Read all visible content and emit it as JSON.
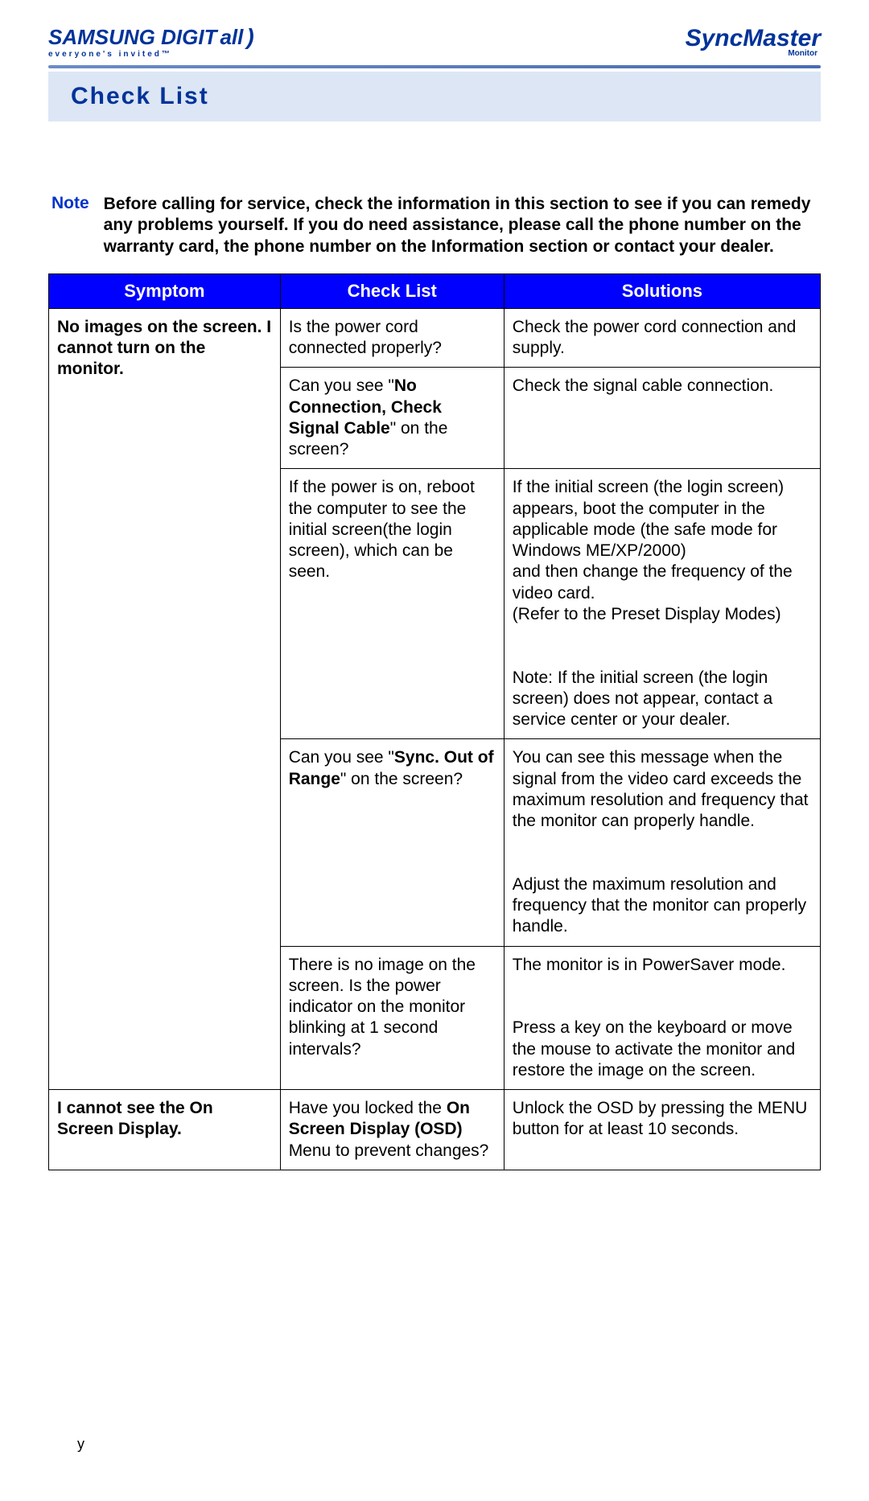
{
  "header": {
    "left_logo_main": "SAMSUNG DIGIT",
    "left_logo_italic": "all",
    "left_logo_sub": "everyone's invited™",
    "right_logo": "SyncMaster",
    "right_logo_sub": "Monitor"
  },
  "title": "Check List",
  "note": {
    "label": "Note",
    "text": "Before calling for service, check the information in this section to see if you can remedy any problems yourself. If you do need assistance, please call the phone number on the warranty card, the phone number on the Information section or contact your dealer."
  },
  "table": {
    "columns": [
      "Symptom",
      "Check List",
      "Solutions"
    ],
    "header_bg": "#0000ff",
    "header_color": "#ffffff",
    "border_color": "#000000",
    "rows": [
      {
        "symptom": "No images on the screen. I cannot turn on the monitor.",
        "symptom_rowspan": 5,
        "check": {
          "prefix": "Is the power cord connected properly?"
        },
        "solution": "Check the power cord connection and supply."
      },
      {
        "check": {
          "prefix": "Can you see \"",
          "bold": "No Connection, Check Signal Cable",
          "suffix": "\" on the screen?"
        },
        "solution": "Check the signal cable connection."
      },
      {
        "check": {
          "prefix": "If the power is on, reboot the computer to see the initial screen(the login screen), which can be seen."
        },
        "solution_parts": [
          "If the initial screen (the login screen) appears, boot the computer in the applicable mode (the safe mode for Windows ME/XP/2000)",
          " and then change the frequency of the video card.",
          "(Refer to the Preset Display Modes)",
          "",
          "Note: If the initial screen (the login screen) does not appear, contact a service center or your dealer."
        ]
      },
      {
        "check": {
          "prefix": "Can you see \"",
          "bold": "Sync. Out of Range",
          "suffix": "\" on the screen?"
        },
        "solution_parts": [
          "You can see this message when the signal from the video card exceeds the maximum resolution and frequency that the monitor can properly handle.",
          "",
          "Adjust the maximum resolution and frequency that the monitor can properly handle."
        ]
      },
      {
        "check": {
          "prefix": "There is no image on the screen. Is the power indicator on the monitor blinking at 1 second intervals?"
        },
        "solution_parts": [
          "The monitor is in PowerSaver mode.",
          "",
          "Press a key on the keyboard or move the mouse to activate the monitor and restore the image on the screen."
        ]
      },
      {
        "symptom": "I cannot see the On Screen Display.",
        "symptom_rowspan": 1,
        "check": {
          "prefix": "Have you locked the ",
          "bold": "On Screen Display (OSD)",
          "suffix": " Menu to prevent changes?"
        },
        "solution": "Unlock the OSD by pressing the MENU button for at least 10 seconds."
      }
    ]
  },
  "footer": "y",
  "colors": {
    "brand_blue": "#003399",
    "note_blue": "#0033cc",
    "title_bg": "#dce6f5",
    "hr_gradient_from": "#6b8cc7",
    "hr_gradient_to": "#4a6db3"
  }
}
